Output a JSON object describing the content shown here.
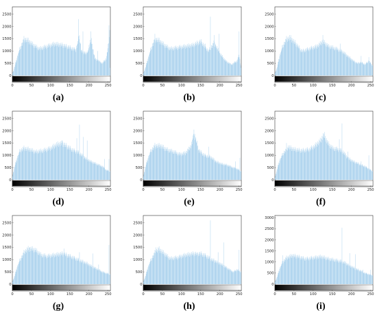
{
  "colors": {
    "bar": "#9ecbeb",
    "axis": "#333333",
    "background": "#ffffff"
  },
  "chart_data": [
    {
      "type": "bar",
      "caption": "(a)",
      "xticks": [
        "0",
        "50",
        "100",
        "150",
        "200",
        "250"
      ],
      "yticks": [
        "0",
        "500",
        "1000",
        "1500",
        "2000",
        "2500"
      ],
      "xlim": [
        0,
        256
      ],
      "ylim": [
        0,
        2800
      ],
      "grid": false,
      "profile": [
        [
          0,
          100
        ],
        [
          3,
          200
        ],
        [
          8,
          500
        ],
        [
          15,
          900
        ],
        [
          22,
          1200
        ],
        [
          30,
          1500
        ],
        [
          40,
          1450
        ],
        [
          55,
          1250
        ],
        [
          70,
          1100
        ],
        [
          90,
          1200
        ],
        [
          110,
          1300
        ],
        [
          130,
          1250
        ],
        [
          150,
          1150
        ],
        [
          165,
          1050
        ],
        [
          175,
          1600
        ],
        [
          180,
          1000
        ],
        [
          195,
          900
        ],
        [
          205,
          1500
        ],
        [
          215,
          700
        ],
        [
          225,
          600
        ],
        [
          235,
          500
        ],
        [
          245,
          700
        ],
        [
          250,
          1200
        ],
        [
          254,
          1900
        ],
        [
          255,
          300
        ]
      ],
      "spikes": [
        [
          172,
          2300
        ],
        [
          184,
          1800
        ],
        [
          205,
          1800
        ],
        [
          223,
          1000
        ],
        [
          252,
          2050
        ]
      ]
    },
    {
      "type": "bar",
      "caption": "(b)",
      "xticks": [
        "0",
        "50",
        "100",
        "150",
        "200",
        "250"
      ],
      "yticks": [
        "0",
        "500",
        "1000",
        "1500",
        "2000",
        "2500"
      ],
      "xlim": [
        0,
        256
      ],
      "ylim": [
        0,
        2800
      ],
      "grid": false,
      "profile": [
        [
          0,
          100
        ],
        [
          5,
          300
        ],
        [
          12,
          700
        ],
        [
          20,
          1100
        ],
        [
          30,
          1500
        ],
        [
          40,
          1450
        ],
        [
          55,
          1250
        ],
        [
          70,
          1100
        ],
        [
          90,
          1150
        ],
        [
          110,
          1200
        ],
        [
          130,
          1250
        ],
        [
          150,
          1400
        ],
        [
          160,
          1200
        ],
        [
          170,
          1000
        ],
        [
          185,
          1350
        ],
        [
          200,
          900
        ],
        [
          215,
          600
        ],
        [
          230,
          450
        ],
        [
          245,
          600
        ],
        [
          250,
          900
        ],
        [
          255,
          300
        ]
      ],
      "spikes": [
        [
          30,
          1700
        ],
        [
          162,
          1300
        ],
        [
          175,
          2400
        ],
        [
          185,
          1650
        ],
        [
          198,
          1700
        ],
        [
          250,
          1800
        ]
      ]
    },
    {
      "type": "bar",
      "caption": "(c)",
      "xticks": [
        "0",
        "50",
        "100",
        "150",
        "200",
        "250"
      ],
      "yticks": [
        "0",
        "500",
        "1000",
        "1500",
        "2000",
        "2500"
      ],
      "xlim": [
        0,
        256
      ],
      "ylim": [
        0,
        2800
      ],
      "grid": false,
      "profile": [
        [
          0,
          100
        ],
        [
          5,
          300
        ],
        [
          12,
          800
        ],
        [
          20,
          1200
        ],
        [
          30,
          1500
        ],
        [
          40,
          1550
        ],
        [
          55,
          1300
        ],
        [
          70,
          1000
        ],
        [
          90,
          1100
        ],
        [
          110,
          1200
        ],
        [
          125,
          1400
        ],
        [
          140,
          1200
        ],
        [
          160,
          1100
        ],
        [
          175,
          1000
        ],
        [
          190,
          800
        ],
        [
          205,
          600
        ],
        [
          215,
          500
        ],
        [
          225,
          550
        ],
        [
          235,
          450
        ],
        [
          245,
          600
        ],
        [
          255,
          400
        ]
      ],
      "spikes": [
        [
          38,
          1650
        ],
        [
          125,
          1650
        ],
        [
          170,
          1300
        ],
        [
          225,
          800
        ],
        [
          245,
          750
        ]
      ]
    },
    {
      "type": "bar",
      "caption": "(d)",
      "xticks": [
        "0",
        "50",
        "100",
        "150",
        "200",
        "250"
      ],
      "yticks": [
        "0",
        "500",
        "1000",
        "1500",
        "2000",
        "2500"
      ],
      "xlim": [
        0,
        256
      ],
      "ylim": [
        0,
        2800
      ],
      "grid": false,
      "profile": [
        [
          0,
          150
        ],
        [
          5,
          500
        ],
        [
          12,
          900
        ],
        [
          20,
          1200
        ],
        [
          30,
          1300
        ],
        [
          45,
          1250
        ],
        [
          60,
          1150
        ],
        [
          80,
          1200
        ],
        [
          100,
          1300
        ],
        [
          115,
          1450
        ],
        [
          130,
          1500
        ],
        [
          145,
          1350
        ],
        [
          160,
          1200
        ],
        [
          175,
          1100
        ],
        [
          190,
          900
        ],
        [
          205,
          750
        ],
        [
          220,
          650
        ],
        [
          235,
          550
        ],
        [
          245,
          400
        ],
        [
          255,
          350
        ]
      ],
      "spikes": [
        [
          130,
          1600
        ],
        [
          168,
          1700
        ],
        [
          175,
          2250
        ],
        [
          185,
          1750
        ],
        [
          195,
          1600
        ],
        [
          240,
          850
        ],
        [
          252,
          850
        ]
      ]
    },
    {
      "type": "bar",
      "caption": "(e)",
      "xticks": [
        "0",
        "50",
        "100",
        "150",
        "200",
        "250"
      ],
      "yticks": [
        "0",
        "500",
        "1000",
        "1500",
        "2000",
        "2500"
      ],
      "xlim": [
        0,
        256
      ],
      "ylim": [
        0,
        2800
      ],
      "grid": false,
      "profile": [
        [
          0,
          150
        ],
        [
          5,
          500
        ],
        [
          12,
          900
        ],
        [
          20,
          1200
        ],
        [
          30,
          1400
        ],
        [
          45,
          1400
        ],
        [
          60,
          1250
        ],
        [
          80,
          1150
        ],
        [
          95,
          1050
        ],
        [
          110,
          1100
        ],
        [
          125,
          1400
        ],
        [
          132,
          1900
        ],
        [
          138,
          1600
        ],
        [
          145,
          1200
        ],
        [
          160,
          1000
        ],
        [
          175,
          950
        ],
        [
          190,
          750
        ],
        [
          205,
          650
        ],
        [
          220,
          600
        ],
        [
          235,
          500
        ],
        [
          245,
          450
        ],
        [
          255,
          350
        ]
      ],
      "spikes": [
        [
          20,
          1150
        ],
        [
          132,
          2050
        ],
        [
          170,
          1350
        ],
        [
          240,
          750
        ],
        [
          252,
          900
        ]
      ]
    },
    {
      "type": "bar",
      "caption": "(f)",
      "xticks": [
        "0",
        "50",
        "100",
        "150",
        "200",
        "250"
      ],
      "yticks": [
        "0",
        "500",
        "1000",
        "1500",
        "2000",
        "2500"
      ],
      "xlim": [
        0,
        256
      ],
      "ylim": [
        0,
        2800
      ],
      "grid": false,
      "profile": [
        [
          0,
          100
        ],
        [
          5,
          400
        ],
        [
          12,
          800
        ],
        [
          22,
          1100
        ],
        [
          35,
          1350
        ],
        [
          50,
          1250
        ],
        [
          70,
          1200
        ],
        [
          90,
          1250
        ],
        [
          105,
          1400
        ],
        [
          118,
          1600
        ],
        [
          128,
          1850
        ],
        [
          138,
          1500
        ],
        [
          150,
          1300
        ],
        [
          165,
          1250
        ],
        [
          178,
          1150
        ],
        [
          190,
          900
        ],
        [
          205,
          750
        ],
        [
          220,
          650
        ],
        [
          235,
          550
        ],
        [
          245,
          450
        ],
        [
          255,
          350
        ]
      ],
      "spikes": [
        [
          30,
          1500
        ],
        [
          168,
          1650
        ],
        [
          175,
          2300
        ],
        [
          190,
          1150
        ],
        [
          225,
          750
        ],
        [
          245,
          1000
        ]
      ]
    },
    {
      "type": "bar",
      "caption": "(g)",
      "xticks": [
        "0",
        "50",
        "100",
        "150",
        "200",
        "250"
      ],
      "yticks": [
        "0",
        "500",
        "1000",
        "1500",
        "2000",
        "2500"
      ],
      "xlim": [
        0,
        256
      ],
      "ylim": [
        0,
        2800
      ],
      "grid": false,
      "profile": [
        [
          0,
          100
        ],
        [
          5,
          300
        ],
        [
          12,
          700
        ],
        [
          20,
          1000
        ],
        [
          30,
          1300
        ],
        [
          40,
          1450
        ],
        [
          50,
          1450
        ],
        [
          60,
          1400
        ],
        [
          75,
          1200
        ],
        [
          90,
          1150
        ],
        [
          110,
          1200
        ],
        [
          130,
          1250
        ],
        [
          150,
          1150
        ],
        [
          165,
          1050
        ],
        [
          180,
          950
        ],
        [
          195,
          850
        ],
        [
          210,
          700
        ],
        [
          225,
          600
        ],
        [
          235,
          500
        ],
        [
          245,
          450
        ],
        [
          255,
          400
        ]
      ],
      "spikes": [
        [
          45,
          1500
        ],
        [
          135,
          1450
        ],
        [
          175,
          1300
        ],
        [
          210,
          1250
        ],
        [
          225,
          800
        ],
        [
          252,
          1600
        ]
      ]
    },
    {
      "type": "bar",
      "caption": "(h)",
      "xticks": [
        "0",
        "50",
        "100",
        "150",
        "200",
        "250"
      ],
      "yticks": [
        "0",
        "500",
        "1000",
        "1500",
        "2000",
        "2500"
      ],
      "xlim": [
        0,
        256
      ],
      "ylim": [
        0,
        2800
      ],
      "grid": false,
      "profile": [
        [
          0,
          100
        ],
        [
          5,
          300
        ],
        [
          12,
          700
        ],
        [
          20,
          1000
        ],
        [
          30,
          1300
        ],
        [
          40,
          1450
        ],
        [
          55,
          1250
        ],
        [
          70,
          1050
        ],
        [
          90,
          1100
        ],
        [
          110,
          1200
        ],
        [
          130,
          1250
        ],
        [
          150,
          1250
        ],
        [
          165,
          1150
        ],
        [
          180,
          1000
        ],
        [
          195,
          900
        ],
        [
          210,
          750
        ],
        [
          225,
          600
        ],
        [
          235,
          500
        ],
        [
          245,
          600
        ],
        [
          255,
          500
        ]
      ],
      "spikes": [
        [
          33,
          1500
        ],
        [
          140,
          1300
        ],
        [
          175,
          2600
        ],
        [
          195,
          1300
        ],
        [
          210,
          1700
        ],
        [
          250,
          1400
        ]
      ]
    },
    {
      "type": "bar",
      "caption": "(i)",
      "xticks": [
        "0",
        "50",
        "100",
        "150",
        "200",
        "250"
      ],
      "yticks": [
        "0",
        "500",
        "1000",
        "1500",
        "2000",
        "2500",
        "3000"
      ],
      "xlim": [
        0,
        256
      ],
      "ylim": [
        0,
        3100
      ],
      "grid": false,
      "profile": [
        [
          0,
          100
        ],
        [
          5,
          300
        ],
        [
          12,
          700
        ],
        [
          20,
          1000
        ],
        [
          30,
          1200
        ],
        [
          45,
          1300
        ],
        [
          60,
          1250
        ],
        [
          80,
          1150
        ],
        [
          100,
          1200
        ],
        [
          120,
          1250
        ],
        [
          140,
          1150
        ],
        [
          155,
          1100
        ],
        [
          170,
          1050
        ],
        [
          180,
          1000
        ],
        [
          195,
          850
        ],
        [
          210,
          700
        ],
        [
          225,
          600
        ],
        [
          235,
          500
        ],
        [
          245,
          450
        ],
        [
          255,
          400
        ]
      ],
      "spikes": [
        [
          20,
          1300
        ],
        [
          175,
          2550
        ],
        [
          195,
          1400
        ],
        [
          210,
          1350
        ],
        [
          230,
          650
        ],
        [
          250,
          650
        ]
      ]
    }
  ]
}
